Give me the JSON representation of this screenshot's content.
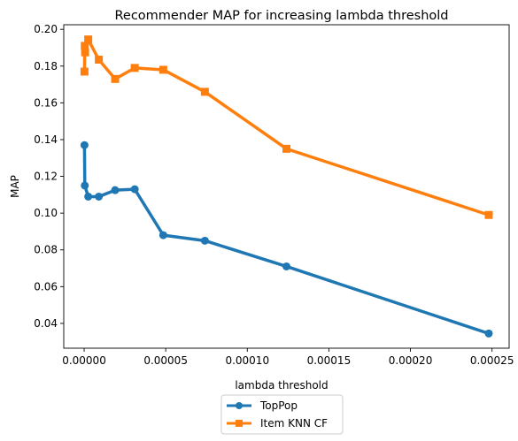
{
  "chart_data": {
    "type": "line",
    "title": "Recommender MAP for increasing lambda threshold",
    "xlabel": "lambda threshold",
    "ylabel": "MAP",
    "xlim": [
      -1.25e-05,
      0.0002605
    ],
    "ylim": [
      0.0265,
      0.2025
    ],
    "x_ticks": [
      0,
      5e-05,
      0.0001,
      0.00015,
      0.0002,
      0.00025
    ],
    "x_tick_labels": [
      "0.00000",
      "0.00005",
      "0.00010",
      "0.00015",
      "0.00020",
      "0.00025"
    ],
    "y_ticks": [
      0.04,
      0.06,
      0.08,
      0.1,
      0.12,
      0.14,
      0.16,
      0.18,
      0.2
    ],
    "y_tick_labels": [
      "0.04",
      "0.06",
      "0.08",
      "0.10",
      "0.12",
      "0.14",
      "0.16",
      "0.18",
      "0.20"
    ],
    "grid": false,
    "legend_position": "below the plot, centered",
    "series": [
      {
        "name": "TopPop",
        "color": "#1f77b4",
        "marker": "circle",
        "x": [
          2e-07,
          4e-07,
          2.5e-06,
          9e-06,
          1.9e-05,
          3.1e-05,
          4.85e-05,
          7.4e-05,
          0.000124,
          0.000248
        ],
        "y": [
          0.137,
          0.115,
          0.109,
          0.109,
          0.1125,
          0.113,
          0.088,
          0.085,
          0.071,
          0.0345
        ]
      },
      {
        "name": "Item KNN CF",
        "color": "#ff7f0e",
        "marker": "square",
        "x": [
          2e-07,
          4e-07,
          6e-07,
          2.5e-06,
          9e-06,
          1.9e-05,
          3.1e-05,
          4.85e-05,
          7.4e-05,
          0.000124,
          0.000248
        ],
        "y": [
          0.177,
          0.191,
          0.1875,
          0.1945,
          0.1835,
          0.173,
          0.179,
          0.178,
          0.166,
          0.135,
          0.099
        ]
      }
    ]
  }
}
